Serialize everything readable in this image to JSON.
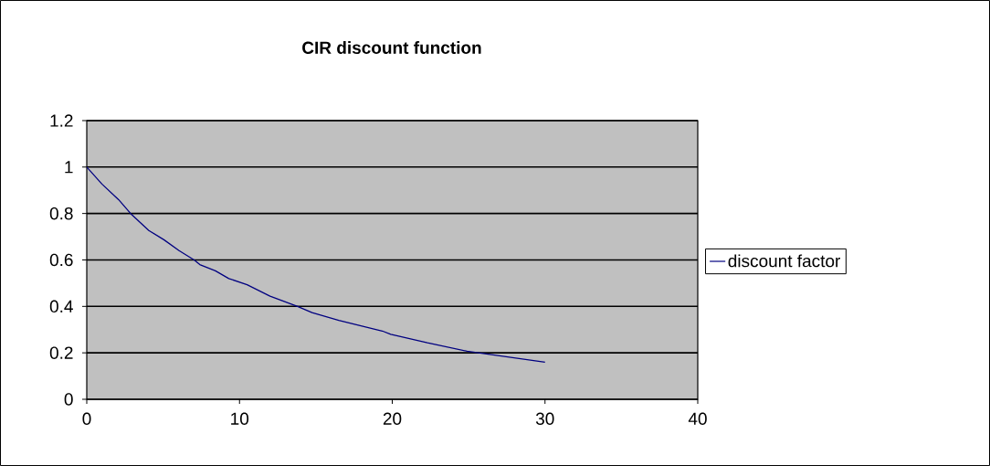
{
  "chart_data": {
    "type": "line",
    "title": "CIR discount function",
    "x": [
      0,
      0.99,
      2.08,
      2.87,
      4.06,
      5.05,
      6.04,
      7.03,
      7.4,
      8.42,
      9.3,
      10.5,
      12.0,
      13.8,
      14.75,
      16.5,
      19.35,
      19.9,
      22.3,
      24.9,
      30
    ],
    "series": [
      {
        "name": "discount factor",
        "color": "#000080",
        "values": [
          1.0,
          0.927,
          0.86,
          0.8,
          0.727,
          0.687,
          0.64,
          0.6,
          0.58,
          0.553,
          0.52,
          0.493,
          0.444,
          0.4,
          0.373,
          0.34,
          0.294,
          0.28,
          0.243,
          0.207,
          0.16
        ]
      }
    ],
    "xlim": [
      0,
      40
    ],
    "ylim": [
      0,
      1.2
    ],
    "xticks": [
      0,
      10,
      20,
      30,
      40
    ],
    "yticks": [
      0,
      0.2,
      0.4,
      0.6,
      0.8,
      1,
      1.2
    ],
    "grid": "y",
    "legend": "right"
  }
}
